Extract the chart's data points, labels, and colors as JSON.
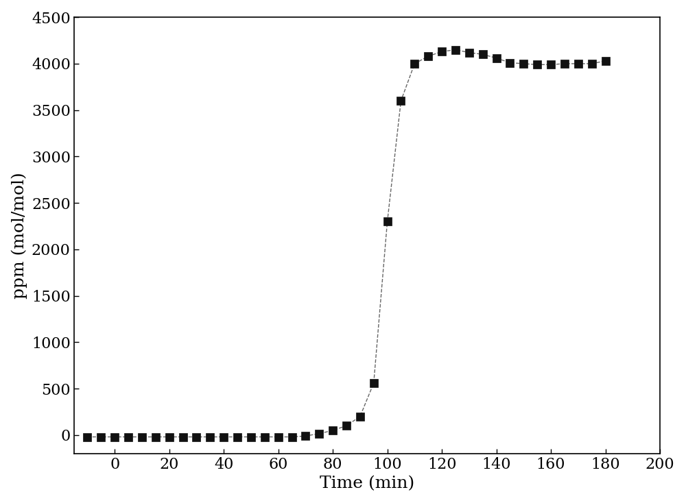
{
  "x": [
    -10,
    -5,
    0,
    5,
    10,
    15,
    20,
    25,
    30,
    35,
    40,
    45,
    50,
    55,
    60,
    65,
    70,
    75,
    80,
    85,
    90,
    95,
    100,
    105,
    110,
    115,
    120,
    125,
    130,
    135,
    140,
    145,
    150,
    155,
    160,
    165,
    170,
    175,
    180
  ],
  "y": [
    -20,
    -20,
    -20,
    -20,
    -20,
    -20,
    -20,
    -20,
    -20,
    -20,
    -20,
    -20,
    -20,
    -20,
    -20,
    -20,
    -10,
    15,
    50,
    100,
    200,
    560,
    2300,
    3600,
    4000,
    4080,
    4130,
    4150,
    4120,
    4100,
    4060,
    4010,
    4000,
    3990,
    3990,
    4000,
    4000,
    4000,
    4030
  ],
  "xlabel": "Time (min)",
  "ylabel": "ppm (mol/mol)",
  "xlim": [
    -15,
    200
  ],
  "ylim": [
    -200,
    4500
  ],
  "xticks": [
    0,
    20,
    40,
    60,
    80,
    100,
    120,
    140,
    160,
    180,
    200
  ],
  "yticks": [
    0,
    500,
    1000,
    1500,
    2000,
    2500,
    3000,
    3500,
    4000,
    4500
  ],
  "line_color": "#666666",
  "marker_color": "#111111",
  "marker_size": 9,
  "line_width": 1.0,
  "xlabel_fontsize": 18,
  "ylabel_fontsize": 18,
  "tick_fontsize": 16,
  "figsize": [
    10.0,
    7.34
  ],
  "dpi": 100
}
